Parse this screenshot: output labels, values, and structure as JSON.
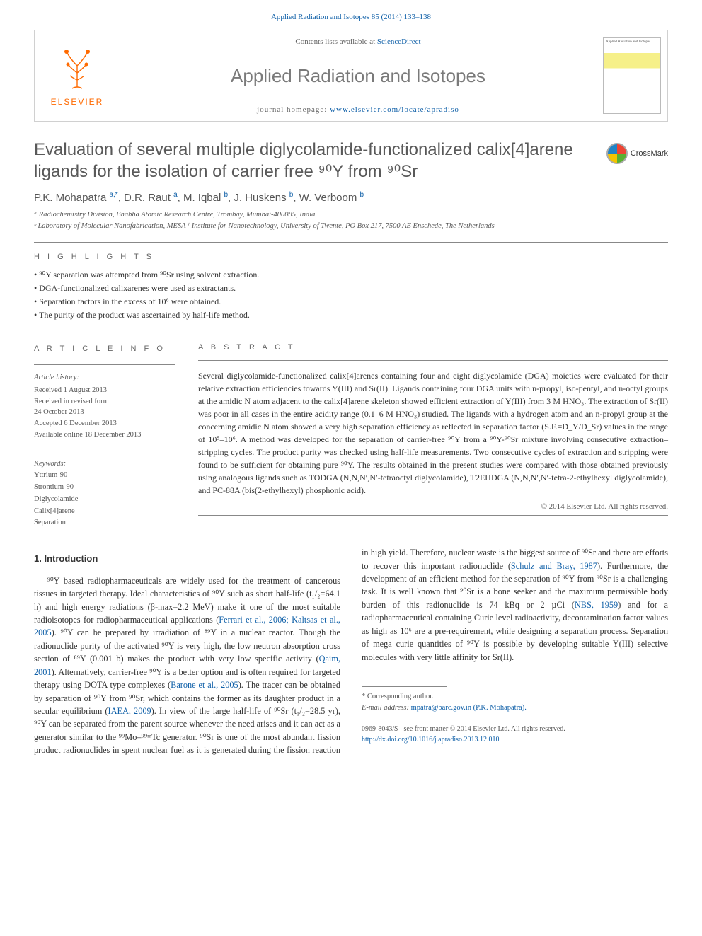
{
  "header": {
    "topLink": {
      "journal": "Applied Radiation and Isotopes 85 (2014) 133–138"
    },
    "contentsPrefix": "Contents lists available at",
    "contentsLink": "ScienceDirect",
    "journalName": "Applied Radiation and Isotopes",
    "homepagePrefix": "journal homepage:",
    "homepageUrl": "www.elsevier.com/locate/apradiso",
    "publisherName": "ELSEVIER",
    "coverLabel": "Applied Radiation and Isotopes"
  },
  "crossmark": {
    "label": "CrossMark"
  },
  "title": "Evaluation of several multiple diglycolamide-functionalized calix[4]arene ligands for the isolation of carrier free ⁹⁰Y from ⁹⁰Sr",
  "authors": "P.K. Mohapatra <sup>a,*</sup>, D.R. Raut <sup>a</sup>, M. Iqbal <sup>b</sup>, J. Huskens <sup>b</sup>, W. Verboom <sup>b</sup>",
  "affiliations": [
    "ᵃ Radiochemistry Division, Bhabha Atomic Research Centre, Trombay, Mumbai-400085, India",
    "ᵇ Laboratory of Molecular Nanofabrication, MESA⁺ Institute for Nanotechnology, University of Twente, PO Box 217, 7500 AE Enschede, The Netherlands"
  ],
  "sections": {
    "highlightsLabel": "H I G H L I G H T S",
    "articleInfoLabel": "A R T I C L E  I N F O",
    "abstractLabel": "A B S T R A C T"
  },
  "highlights": [
    "• ⁹⁰Y separation was attempted from ⁹⁰Sr using solvent extraction.",
    "• DGA-functionalized calixarenes were used as extractants.",
    "• Separation factors in the excess of 10⁶ were obtained.",
    "• The purity of the product was ascertained by half-life method."
  ],
  "articleInfo": {
    "historyHead": "Article history:",
    "history": [
      "Received 1 August 2013",
      "Received in revised form",
      "24 October 2013",
      "Accepted 6 December 2013",
      "Available online 18 December 2013"
    ],
    "keywordsHead": "Keywords:",
    "keywords": [
      "Yttrium-90",
      "Strontium-90",
      "Diglycolamide",
      "Calix[4]arene",
      "Separation"
    ]
  },
  "abstract": "Several diglycolamide-functionalized calix[4]arenes containing four and eight diglycolamide (DGA) moieties were evaluated for their relative extraction efficiencies towards Y(III) and Sr(II). Ligands containing four DGA units with n-propyl, iso-pentyl, and n-octyl groups at the amidic N atom adjacent to the calix[4]arene skeleton showed efficient extraction of Y(III) from 3 M HNO₃. The extraction of Sr(II) was poor in all cases in the entire acidity range (0.1–6 M HNO₃) studied. The ligands with a hydrogen atom and an n-propyl group at the concerning amidic N atom showed a very high separation efficiency as reflected in separation factor (S.F.=D_Y/D_Sr) values in the range of 10⁵–10⁶. A method was developed for the separation of carrier-free ⁹⁰Y from a ⁹⁰Y-⁹⁰Sr mixture involving consecutive extraction–stripping cycles. The product purity was checked using half-life measurements. Two consecutive cycles of extraction and stripping were found to be sufficient for obtaining pure ⁹⁰Y. The results obtained in the present studies were compared with those obtained previously using analogous ligands such as TODGA (N,N,N′,N′-tetraoctyl diglycolamide), T2EHDGA (N,N,N′,N′-tetra-2-ethylhexyl diglycolamide), and PC-88A (bis(2-ethylhexyl) phosphonic acid).",
  "copyright": "© 2014 Elsevier Ltd. All rights reserved.",
  "body": {
    "introHeading": "1.  Introduction",
    "para1_a": "⁹⁰Y based radiopharmaceuticals are widely used for the treatment of cancerous tissues in targeted therapy. Ideal characteristics of ⁹⁰Y such as short half-life (t₁/₂=64.1 h) and high energy radiations (β-max=2.2 MeV) make it one of the most suitable radioisotopes for radiopharmaceutical applications (",
    "ref1": "Ferrari et al., 2006; Kaltsas et al., 2005",
    "para1_b": "). ⁹⁰Y can be prepared by irradiation of ⁸⁹Y in a nuclear reactor. Though the radionuclide purity of the activated ⁹⁰Y is very high, the low neutron absorption cross section of ⁸⁹Y (0.001 b) makes the product with very low specific activity (",
    "ref2": "Qaim, 2001",
    "para1_c": "). Alternatively, carrier-free ⁹⁰Y is a better option and is often required for targeted therapy using DOTA type complexes (",
    "ref3": "Barone et al., 2005",
    "para1_d": "). The tracer can be obtained by separation of ⁹⁰Y from ⁹⁰Sr, which contains the former as its daughter product in a secular equilibrium (",
    "ref4": "IAEA, 2009",
    "para1_e": "). In view of the large half-life of ⁹⁰Sr (t₁/₂=28.5 yr), ⁹⁰Y can be separated from the parent source whenever the need arises and it can act as a generator similar to the ⁹⁹Mo–⁹⁹ᵐTc generator. ⁹⁰Sr is one of the most abundant fission product radionuclides in spent nuclear fuel as it is generated during the fission reaction in high yield. Therefore, nuclear waste is the biggest source of ⁹⁰Sr and there are efforts to recover this important radionuclide (",
    "ref5": "Schulz and Bray, 1987",
    "para1_f": "). Furthermore, the development of an efficient method for the separation of ⁹⁰Y from ⁹⁰Sr is a challenging task. It is well known that ⁹⁰Sr is a bone seeker and the maximum permissible body burden of this radionuclide is 74 kBq or 2 µCi (",
    "ref6": "NBS, 1959",
    "para1_g": ") and for a radiopharmaceutical containing Curie level radioactivity, decontamination factor values as high as 10⁶ are a pre-requirement, while designing a separation process. Separation of mega curie quantities of ⁹⁰Y is possible by developing suitable Y(III) selective molecules with very little affinity for Sr(II)."
  },
  "footnote": {
    "corrLabel": "* Corresponding author.",
    "emailLabel": "E-mail address:",
    "email": "mpatra@barc.gov.in (P.K. Mohapatra)."
  },
  "bottom": {
    "issn": "0969-8043/$ - see front matter © 2014 Elsevier Ltd. All rights reserved.",
    "doi": "http://dx.doi.org/10.1016/j.apradiso.2013.12.010"
  },
  "style": {
    "linkColor": "#1060a8",
    "titleColor": "#595959",
    "textColor": "#333333",
    "mutedColor": "#555555",
    "ruleColor": "#888888",
    "elsevierOrange": "#ff6a00",
    "bodyFontSize": 12.3,
    "titleFontSize": 24,
    "journalFontSize": 26,
    "pageWidth": 992,
    "pageHeight": 1323,
    "columnGap": 30
  }
}
